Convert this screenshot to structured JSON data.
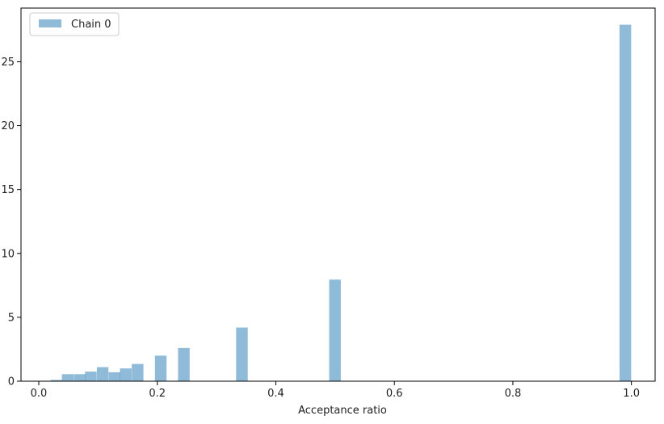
{
  "chart_data": {
    "type": "bar",
    "xlabel": "Acceptance ratio",
    "ylabel": "",
    "xlim": [
      -0.03,
      1.04
    ],
    "ylim": [
      0,
      29.2
    ],
    "xticks": [
      0.0,
      0.2,
      0.4,
      0.6,
      0.8,
      1.0
    ],
    "xtick_labels": [
      "0.0",
      "0.2",
      "0.4",
      "0.6",
      "0.8",
      "1.0"
    ],
    "yticks": [
      0,
      5,
      10,
      15,
      20,
      25
    ],
    "ytick_labels": [
      "0",
      "5",
      "10",
      "15",
      "20",
      "25"
    ],
    "bin_width": 0.0196,
    "grid": false,
    "legend_position": "top-left",
    "series": [
      {
        "name": "Chain 0",
        "color": "#1f77b4",
        "alpha": 0.5,
        "bins": [
          {
            "x": 0.02,
            "value": 0.1
          },
          {
            "x": 0.039,
            "value": 0.55
          },
          {
            "x": 0.059,
            "value": 0.55
          },
          {
            "x": 0.078,
            "value": 0.75
          },
          {
            "x": 0.098,
            "value": 1.1
          },
          {
            "x": 0.118,
            "value": 0.7
          },
          {
            "x": 0.137,
            "value": 1.0
          },
          {
            "x": 0.157,
            "value": 1.35
          },
          {
            "x": 0.196,
            "value": 2.0
          },
          {
            "x": 0.235,
            "value": 2.6
          },
          {
            "x": 0.333,
            "value": 4.2
          },
          {
            "x": 0.49,
            "value": 7.95
          },
          {
            "x": 0.98,
            "value": 27.9
          }
        ]
      }
    ]
  }
}
